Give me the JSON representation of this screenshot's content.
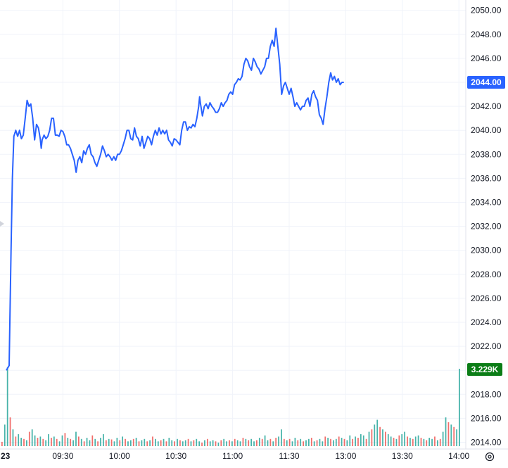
{
  "chart_data": {
    "type": "line",
    "title": "",
    "xlabel": "",
    "ylabel": "",
    "ylim": [
      2014,
      2050
    ],
    "yticks": [
      "2050.00",
      "2048.00",
      "2046.00",
      "2044.00",
      "2042.00",
      "2040.00",
      "2038.00",
      "2036.00",
      "2034.00",
      "2032.00",
      "2030.00",
      "2028.00",
      "2026.00",
      "2024.00",
      "2022.00",
      "2020.00",
      "2018.00",
      "2016.00",
      "2014.00"
    ],
    "x_ticks": [
      {
        "label": "23",
        "t": 0
      },
      {
        "label": "09:30",
        "t": 30
      },
      {
        "label": "10:00",
        "t": 60
      },
      {
        "label": "10:30",
        "t": 90
      },
      {
        "label": "11:00",
        "t": 120
      },
      {
        "label": "11:30",
        "t": 150
      },
      {
        "label": "13:00",
        "t": 180
      },
      {
        "label": "13:30",
        "t": 210
      },
      {
        "label": "14:00",
        "t": 240
      }
    ],
    "last_price_label": "2044.00",
    "last_price": 2044.0,
    "volume_label": "3.229K",
    "volume_scale_max": 3229,
    "price_color": "#2962ff",
    "volume_up_color": "#26a69a",
    "volume_down_color": "#ef5350",
    "series": [
      {
        "values": [
          [
            0,
            2020.0
          ],
          [
            1.5,
            2020.4
          ],
          [
            2.5,
            2030
          ],
          [
            3.2,
            2036
          ],
          [
            4,
            2039.5
          ],
          [
            5,
            2040
          ],
          [
            6,
            2039.5
          ],
          [
            7,
            2040
          ],
          [
            8,
            2039.3
          ],
          [
            9,
            2039.6
          ],
          [
            10,
            2041
          ],
          [
            11,
            2042.5
          ],
          [
            12,
            2042
          ],
          [
            13,
            2042.2
          ],
          [
            14,
            2041
          ],
          [
            15,
            2039.2
          ],
          [
            16,
            2040.5
          ],
          [
            17,
            2040.2
          ],
          [
            18,
            2039.3
          ],
          [
            18.5,
            2038.5
          ],
          [
            19,
            2039.2
          ],
          [
            20,
            2039.6
          ],
          [
            21,
            2039.3
          ],
          [
            22,
            2039.5
          ],
          [
            23,
            2040
          ],
          [
            24,
            2041
          ],
          [
            25,
            2041
          ],
          [
            26,
            2039.6
          ],
          [
            27,
            2039.6
          ],
          [
            28,
            2039.5
          ],
          [
            29,
            2040
          ],
          [
            30,
            2039.9
          ],
          [
            31,
            2039.5
          ],
          [
            32,
            2038.8
          ],
          [
            33,
            2038.8
          ],
          [
            34,
            2038.5
          ],
          [
            35,
            2038
          ],
          [
            36,
            2037.5
          ],
          [
            37,
            2036.5
          ],
          [
            38,
            2037.5
          ],
          [
            39,
            2037.8
          ],
          [
            40,
            2037.3
          ],
          [
            41,
            2038.3
          ],
          [
            42,
            2038
          ],
          [
            43,
            2038.5
          ],
          [
            44,
            2038.8
          ],
          [
            45,
            2038
          ],
          [
            46,
            2037.8
          ],
          [
            47,
            2037.3
          ],
          [
            48,
            2037
          ],
          [
            49,
            2037.5
          ],
          [
            50,
            2038
          ],
          [
            51,
            2038.7
          ],
          [
            52,
            2038.3
          ],
          [
            53,
            2037.8
          ],
          [
            54,
            2038
          ],
          [
            55,
            2037.8
          ],
          [
            56,
            2037.5
          ],
          [
            57,
            2037.8
          ],
          [
            58,
            2037.5
          ],
          [
            59,
            2038
          ],
          [
            60,
            2038
          ],
          [
            61,
            2038.3
          ],
          [
            62,
            2038.8
          ],
          [
            63,
            2039.3
          ],
          [
            64,
            2040
          ],
          [
            65,
            2040
          ],
          [
            66,
            2039.3
          ],
          [
            67,
            2039.2
          ],
          [
            68,
            2040.2
          ],
          [
            69,
            2039.5
          ],
          [
            70,
            2039.3
          ],
          [
            71,
            2038.7
          ],
          [
            72,
            2039.5
          ],
          [
            73,
            2038.5
          ],
          [
            74,
            2039
          ],
          [
            75,
            2039.5
          ],
          [
            76,
            2039.3
          ],
          [
            77,
            2038.8
          ],
          [
            78,
            2039.5
          ],
          [
            79,
            2040
          ],
          [
            80,
            2039.6
          ],
          [
            81,
            2040.2
          ],
          [
            82,
            2039.7
          ],
          [
            83,
            2040
          ],
          [
            84,
            2039.7
          ],
          [
            85,
            2040
          ],
          [
            86,
            2039.2
          ],
          [
            87,
            2039
          ],
          [
            88,
            2038.7
          ],
          [
            89,
            2039.3
          ],
          [
            90,
            2039.2
          ],
          [
            91,
            2039
          ],
          [
            92,
            2038.8
          ],
          [
            93,
            2040
          ],
          [
            94,
            2040.7
          ],
          [
            95,
            2040.7
          ],
          [
            96,
            2040
          ],
          [
            97,
            2040.3
          ],
          [
            98,
            2040.2
          ],
          [
            99,
            2040.5
          ],
          [
            100,
            2040.3
          ],
          [
            101,
            2041
          ],
          [
            102,
            2042
          ],
          [
            102.5,
            2042.8
          ],
          [
            103,
            2042.2
          ],
          [
            104,
            2041.2
          ],
          [
            105,
            2042
          ],
          [
            106,
            2042.2
          ],
          [
            107,
            2041.8
          ],
          [
            108,
            2042.3
          ],
          [
            109,
            2042
          ],
          [
            110,
            2041.8
          ],
          [
            111,
            2041.5
          ],
          [
            112,
            2041.5
          ],
          [
            113,
            2041.8
          ],
          [
            114,
            2042.3
          ],
          [
            115,
            2042
          ],
          [
            116,
            2042.3
          ],
          [
            117,
            2042.5
          ],
          [
            118,
            2043
          ],
          [
            119,
            2043.2
          ],
          [
            120,
            2043
          ],
          [
            121,
            2043.8
          ],
          [
            122,
            2044
          ],
          [
            123,
            2044.3
          ],
          [
            124,
            2044.2
          ],
          [
            125,
            2044.5
          ],
          [
            126,
            2045.5
          ],
          [
            127,
            2046
          ],
          [
            128,
            2045.8
          ],
          [
            129,
            2045.3
          ],
          [
            130,
            2045
          ],
          [
            131,
            2046
          ],
          [
            132,
            2045.7
          ],
          [
            133,
            2045.3
          ],
          [
            134,
            2045.1
          ],
          [
            135,
            2044.7
          ],
          [
            136,
            2045
          ],
          [
            137,
            2045.3
          ],
          [
            138,
            2046
          ],
          [
            139,
            2046
          ],
          [
            140,
            2047
          ],
          [
            141,
            2047.5
          ],
          [
            142,
            2047
          ],
          [
            143,
            2048.5
          ],
          [
            144,
            2047
          ],
          [
            145,
            2045.5
          ],
          [
            146,
            2043
          ],
          [
            147,
            2043.7
          ],
          [
            148,
            2044
          ],
          [
            149,
            2043.5
          ],
          [
            150,
            2043
          ],
          [
            151,
            2043.5
          ],
          [
            152,
            2042.8
          ],
          [
            153,
            2042
          ],
          [
            154,
            2042.3
          ],
          [
            155,
            2042
          ],
          [
            156,
            2041.7
          ],
          [
            157,
            2042
          ],
          [
            158,
            2042
          ],
          [
            159,
            2042.5
          ],
          [
            160,
            2042.7
          ],
          [
            161,
            2042
          ],
          [
            162,
            2043
          ],
          [
            163,
            2043.3
          ],
          [
            164,
            2042.8
          ],
          [
            165,
            2042.5
          ],
          [
            166,
            2041.3
          ],
          [
            167,
            2041
          ],
          [
            168,
            2040.5
          ],
          [
            169,
            2041.8
          ],
          [
            170,
            2042.8
          ],
          [
            171,
            2044
          ],
          [
            172,
            2044.8
          ],
          [
            173,
            2044.2
          ],
          [
            174,
            2044.5
          ],
          [
            175,
            2044
          ],
          [
            176,
            2044.3
          ],
          [
            177,
            2043.8
          ],
          [
            178,
            2044
          ],
          [
            179,
            2044
          ]
        ]
      }
    ],
    "volume": [
      180,
      900,
      3300,
      1200,
      700,
      400,
      500,
      350,
      300,
      250,
      600,
      700,
      450,
      350,
      400,
      300,
      250,
      500,
      350,
      400,
      300,
      200,
      450,
      550,
      350,
      300,
      250,
      600,
      400,
      300,
      200,
      350,
      250,
      450,
      300,
      200,
      350,
      500,
      250,
      300,
      280,
      200,
      350,
      250,
      400,
      300,
      200,
      250,
      300,
      350,
      200,
      250,
      300,
      200,
      250,
      400,
      300,
      200,
      250,
      300,
      200,
      350,
      250,
      200,
      300,
      250,
      200,
      250,
      300,
      200,
      250,
      300,
      200,
      150,
      250,
      300,
      200,
      250,
      200,
      150,
      250,
      300,
      200,
      250,
      200,
      300,
      250,
      200,
      350,
      300,
      250,
      300,
      200,
      250,
      350,
      300,
      450,
      250,
      300,
      200,
      350,
      400,
      700,
      300,
      250,
      300,
      200,
      350,
      250,
      300,
      200,
      250,
      300,
      350,
      200,
      250,
      300,
      200,
      400,
      350,
      300,
      250,
      300,
      400,
      350,
      300,
      250,
      450,
      300,
      400,
      350,
      500,
      450,
      300,
      600,
      700,
      900,
      1100,
      800,
      700,
      600,
      500,
      400,
      350,
      300,
      450,
      500,
      600,
      400,
      350,
      300,
      400,
      450,
      350,
      300,
      250,
      350,
      300,
      400,
      250,
      300,
      600,
      1200,
      1000,
      900,
      800,
      700,
      3229
    ],
    "volume_direction": "mixed"
  }
}
